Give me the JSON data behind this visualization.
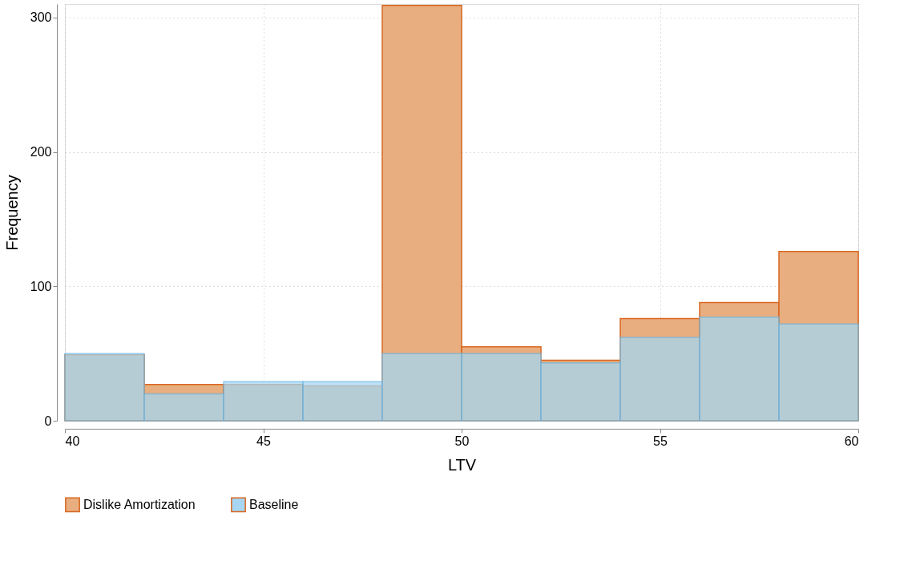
{
  "chart_data": {
    "type": "histogram",
    "xlabel": "LTV",
    "ylabel": "Frequency",
    "bins": [
      40,
      42,
      44,
      46,
      48,
      50,
      52,
      54,
      56,
      58,
      60
    ],
    "series": [
      {
        "name": "Dislike Amortization",
        "color": "#e8ae80",
        "values": [
          49,
          27,
          27,
          26,
          309,
          55,
          45,
          76,
          88,
          126
        ]
      },
      {
        "name": "Baseline",
        "color": "#a6d6f2",
        "values": [
          50,
          20,
          29,
          29,
          50,
          50,
          43,
          62,
          77,
          72
        ]
      }
    ],
    "xlim": [
      40,
      60
    ],
    "xticks": [
      40,
      45,
      50,
      55,
      60
    ],
    "ylim": [
      0,
      310
    ],
    "yticks": [
      0,
      100,
      200,
      300
    ],
    "grid": true,
    "legend": "bottom"
  }
}
